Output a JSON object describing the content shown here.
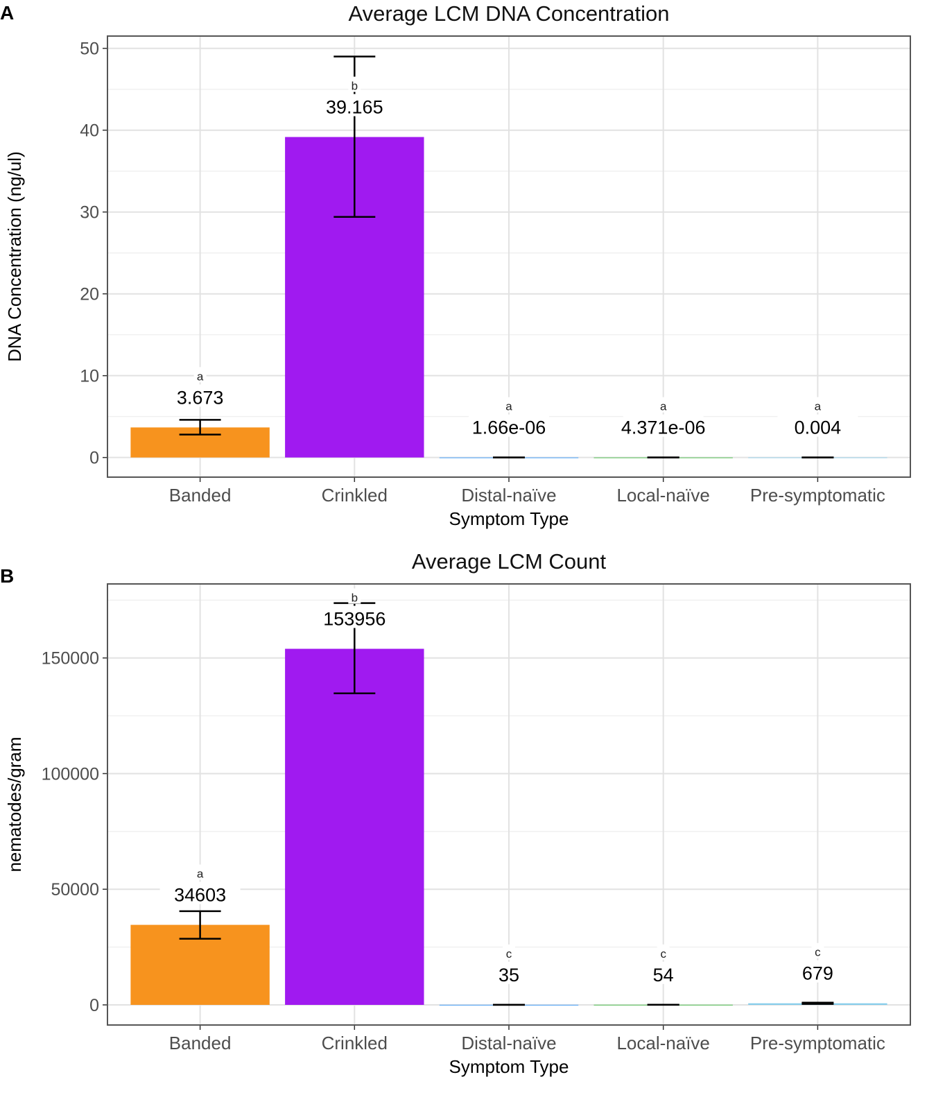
{
  "chart_data": [
    {
      "panel": "A",
      "type": "bar",
      "title": "Average LCM DNA Concentration",
      "xlabel": "Symptom Type",
      "ylabel": "DNA Concentration (ng/ul)",
      "categories": [
        "Banded",
        "Crinkled",
        "Distal-naïve",
        "Local-naïve",
        "Pre-symptomatic"
      ],
      "values": [
        3.673,
        39.165,
        1.66e-06,
        4.371e-06,
        0.004
      ],
      "value_labels": [
        "3.673",
        "39.165",
        "1.66e-06",
        "4.371e-06",
        "0.004"
      ],
      "significance_letters": [
        "a",
        "b",
        "a",
        "a",
        "a"
      ],
      "error_low": [
        2.8,
        29.4,
        0,
        0,
        0
      ],
      "error_high": [
        4.6,
        49.0,
        0,
        0,
        0.01
      ],
      "colors": [
        "#F7931E",
        "#A01AF0",
        "#1E90FF",
        "#2EB82E",
        "#87CEEB"
      ],
      "ylim": [
        -2.4,
        51.5
      ],
      "yticks": [
        0,
        10,
        20,
        30,
        40,
        50
      ],
      "ytick_labels": [
        "0",
        "10",
        "20",
        "30",
        "40",
        "50"
      ],
      "grid": true
    },
    {
      "panel": "B",
      "type": "bar",
      "title": "Average LCM Count",
      "xlabel": "Symptom Type",
      "ylabel": "nematodes/gram",
      "categories": [
        "Banded",
        "Crinkled",
        "Distal-naïve",
        "Local-naïve",
        "Pre-symptomatic"
      ],
      "values": [
        34603,
        153956,
        35,
        54,
        679
      ],
      "value_labels": [
        "34603",
        "153956",
        "35",
        "54",
        "679"
      ],
      "significance_letters": [
        "a",
        "b",
        "c",
        "c",
        "c"
      ],
      "error_low": [
        28600,
        134700,
        20,
        30,
        400
      ],
      "error_high": [
        40500,
        173700,
        50,
        80,
        960
      ],
      "colors": [
        "#F7931E",
        "#A01AF0",
        "#1E90FF",
        "#2EB82E",
        "#87CEEB"
      ],
      "ylim": [
        -8700,
        182000
      ],
      "yticks": [
        0,
        50000,
        100000,
        150000
      ],
      "ytick_labels": [
        "0",
        "50000",
        "100000",
        "150000"
      ],
      "grid": true
    }
  ]
}
